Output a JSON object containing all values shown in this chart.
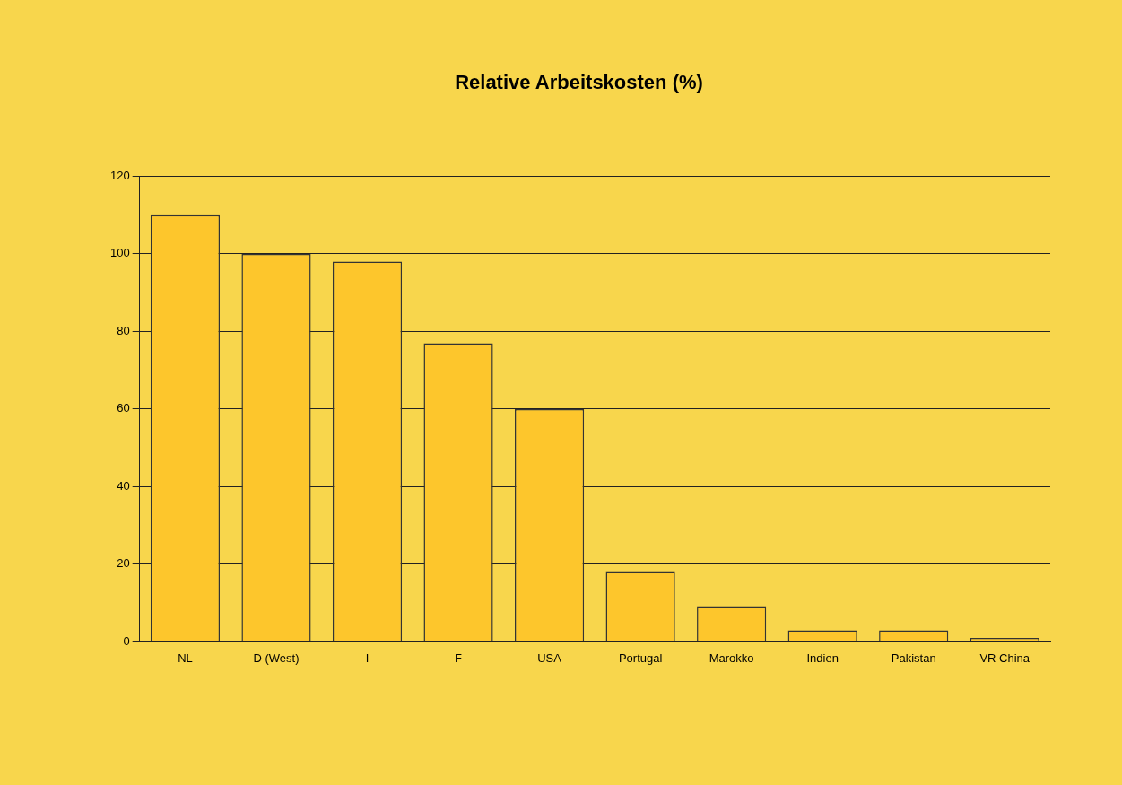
{
  "chart_data": {
    "type": "bar",
    "title": "Relative Arbeitskosten (%)",
    "categories": [
      "NL",
      "D (West)",
      "I",
      "F",
      "USA",
      "Portugal",
      "Marokko",
      "Indien",
      "Pakistan",
      "VR China"
    ],
    "values": [
      110,
      100,
      98,
      77,
      60,
      18,
      9,
      3,
      3,
      1
    ],
    "color": "#fdc62c",
    "ylim": [
      0,
      120
    ],
    "yticks": [
      0,
      20,
      40,
      60,
      80,
      100,
      120
    ],
    "grid": "y"
  }
}
